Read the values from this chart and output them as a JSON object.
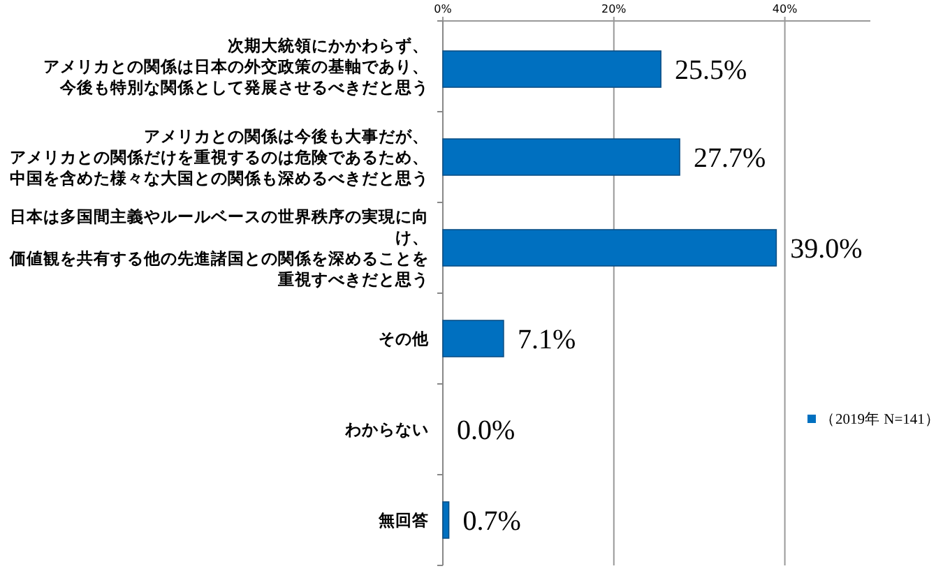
{
  "chart_data": {
    "type": "bar",
    "orientation": "horizontal",
    "categories": [
      "次期大統領にかかわらず、アメリカとの関係は日本の外交政策の基軸であり、今後も特別な関係として発展させるべきだと思う",
      "アメリカとの関係は今後も大事だが、アメリカとの関係だけを重視するのは危険であるため、中国を含めた様々な大国との関係も深めるべきだと思う",
      "日本は多国間主義やルールベースの世界秩序の実現に向け、価値観を共有する他の先進諸国との関係を深めることを重視すべきだと思う",
      "その他",
      "わからない",
      "無回答"
    ],
    "series": [
      {
        "name": "（2019年 N=141）",
        "color": "#0070c0",
        "values": [
          25.5,
          27.7,
          39.0,
          7.1,
          0.0,
          0.7
        ],
        "value_labels": [
          "25.5%",
          "27.7%",
          "39.0%",
          "7.1%",
          "0.0%",
          "0.7%"
        ]
      }
    ],
    "xlim": [
      0,
      50
    ],
    "xticks": [
      {
        "value": 0,
        "label": "0%"
      },
      {
        "value": 20,
        "label": "20%"
      },
      {
        "value": 40,
        "label": "40%"
      }
    ],
    "grid": "x",
    "legend": "right"
  }
}
